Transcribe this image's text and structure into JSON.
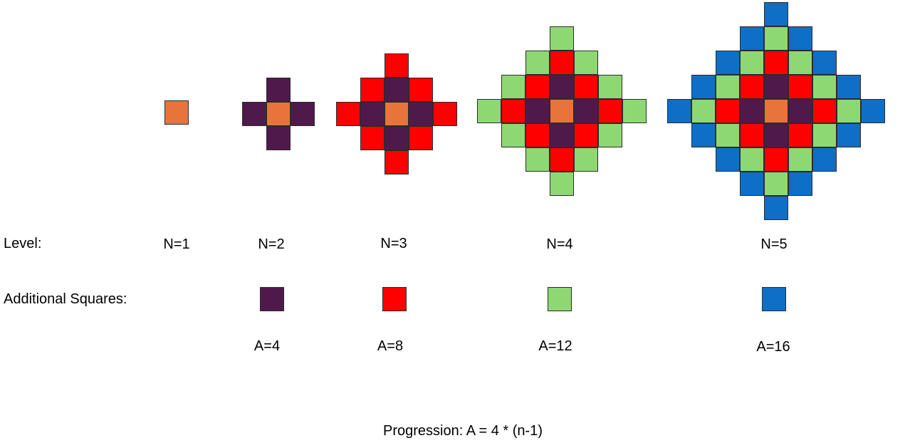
{
  "colors": {
    "level1": "#E8743B",
    "level2": "#4F1A4B",
    "level3": "#FF0000",
    "level4": "#8ED873",
    "level5": "#0F6FC6"
  },
  "row_labels": {
    "level": "Level:",
    "additional": "Additional Squares:"
  },
  "levels": [
    {
      "n_label": "N=1",
      "a_label": ""
    },
    {
      "n_label": "N=2",
      "a_label": "A=4"
    },
    {
      "n_label": "N=3",
      "a_label": "A=8"
    },
    {
      "n_label": "N=4",
      "a_label": "A=12"
    },
    {
      "n_label": "N=5",
      "a_label": "A=16"
    }
  ],
  "formula": "Progression: A = 4 * (n-1)"
}
